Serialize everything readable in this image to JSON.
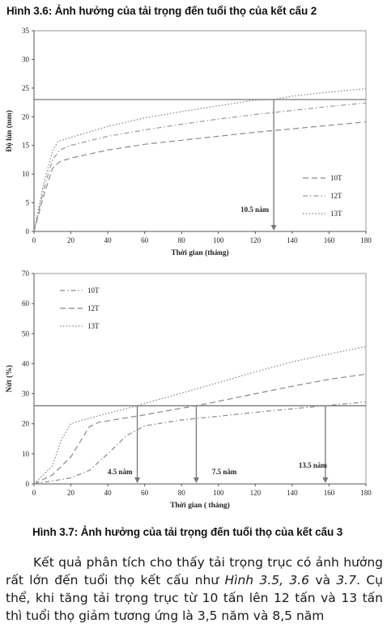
{
  "figure1": {
    "caption": "Hình 3.6: Ảnh hưởng của tải trọng đến tuổi thọ của kết cấu 2",
    "chart_data": {
      "type": "line",
      "xlabel": "Thời gian (tháng)",
      "ylabel": "Độ lún (mm)",
      "xlim": [
        0,
        180
      ],
      "ylim": [
        0,
        35
      ],
      "xticks": [
        0,
        20,
        40,
        60,
        80,
        100,
        120,
        140,
        160,
        180
      ],
      "yticks": [
        0,
        5,
        10,
        15,
        20,
        25,
        30,
        35
      ],
      "grid": false,
      "legend_position": "right",
      "threshold_y": 23,
      "series": [
        {
          "name": "10T",
          "dash": "long-dash",
          "color": "#8a8a8a",
          "x": [
            0,
            5,
            10,
            14,
            20,
            40,
            60,
            80,
            100,
            120,
            140,
            160,
            180
          ],
          "y": [
            0,
            6,
            11,
            12.2,
            12.8,
            14.2,
            15.2,
            15.9,
            16.6,
            17.3,
            17.9,
            18.5,
            19.1
          ]
        },
        {
          "name": "12T",
          "dash": "dash-dot",
          "color": "#9a9a9a",
          "x": [
            0,
            5,
            10,
            14,
            20,
            40,
            60,
            80,
            100,
            120,
            140,
            160,
            180
          ],
          "y": [
            0,
            7,
            12.5,
            14.2,
            15,
            16.6,
            17.7,
            18.7,
            19.6,
            20.4,
            21.1,
            21.8,
            22.4
          ]
        },
        {
          "name": "13T",
          "dash": "dotted",
          "color": "#888888",
          "x": [
            0,
            5,
            10,
            13,
            20,
            40,
            60,
            80,
            100,
            120,
            130,
            140,
            160,
            180
          ],
          "y": [
            0,
            8,
            14,
            15.7,
            16.4,
            18.3,
            19.8,
            20.9,
            21.9,
            22.9,
            23,
            23.6,
            24.3,
            24.9
          ]
        }
      ],
      "annotations": [
        {
          "text": "10.5 năm",
          "x": 130
        }
      ]
    }
  },
  "figure2": {
    "caption": "Hình 3.7: Ảnh hưởng của tải trọng đến tuổi thọ của kết cấu 3",
    "chart_data": {
      "type": "line",
      "xlabel": "Thời gian ( tháng)",
      "ylabel": "Nứt (%)",
      "xlim": [
        0,
        180
      ],
      "ylim": [
        0,
        70
      ],
      "xticks": [
        0,
        20,
        40,
        60,
        80,
        100,
        120,
        140,
        160,
        180
      ],
      "yticks": [
        0,
        10,
        20,
        30,
        40,
        50,
        60,
        70
      ],
      "grid": false,
      "legend_position": "top-left",
      "threshold_y": 26,
      "series": [
        {
          "name": "10T",
          "dash": "dash-dot",
          "color": "#8a8a8a",
          "x": [
            0,
            10,
            20,
            30,
            40,
            50,
            56,
            60,
            80,
            100,
            120,
            140,
            158,
            180
          ],
          "y": [
            0,
            1,
            2,
            4.5,
            10,
            16,
            18,
            19.3,
            21.3,
            22.5,
            23.8,
            25,
            26,
            27.3
          ]
        },
        {
          "name": "12T",
          "dash": "long-dash",
          "color": "#888888",
          "x": [
            0,
            10,
            20,
            25,
            30,
            35,
            50,
            60,
            80,
            88,
            100,
            120,
            140,
            160,
            180
          ],
          "y": [
            0,
            3,
            9,
            14,
            19,
            20.5,
            22,
            23,
            25.2,
            26,
            27.5,
            30,
            32.5,
            34.8,
            36.5
          ]
        },
        {
          "name": "13T",
          "dash": "dotted",
          "color": "#888888",
          "x": [
            0,
            10,
            15,
            20,
            25,
            40,
            56,
            60,
            80,
            100,
            120,
            140,
            160,
            180
          ],
          "y": [
            0,
            6,
            15,
            20,
            21,
            23.5,
            26,
            26.8,
            30.2,
            33.7,
            37.3,
            40.6,
            43.2,
            45.7
          ]
        }
      ],
      "annotations": [
        {
          "text": "4.5 năm",
          "x": 56
        },
        {
          "text": "7.5 năm",
          "x": 88
        },
        {
          "text": "13.5 năm",
          "x": 158
        }
      ]
    }
  },
  "paragraph": {
    "p1": "Kết quả phân tích cho thấy tải trọng trục có ảnh hưởng rất lớn đến tuổi thọ kết cấu như ",
    "fig_ref": "Hình 3.5, 3.6",
    "p2": " và ",
    "fig_ref2": "3.7",
    "p3": ". Cụ thể, khi tăng tải trọng trục từ 10 tấn lên 12 tấn và 13 tấn thì tuổi thọ giảm tương ứng là 3,5 năm và 8,5 năm"
  }
}
